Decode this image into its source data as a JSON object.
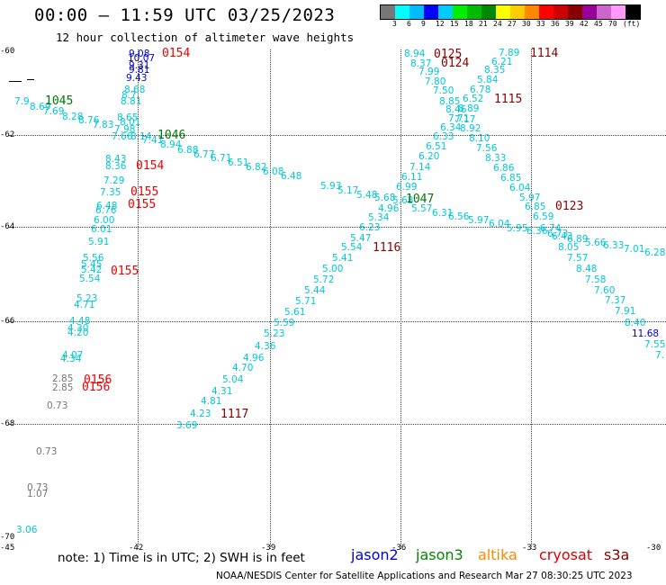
{
  "header": {
    "title": "00:00 – 11:59 UTC 03/25/2023",
    "subtitle": "12 hour collection of altimeter wave heights"
  },
  "colorbar": {
    "colors": [
      "#777777",
      "#00ffff",
      "#00bbff",
      "#0000ff",
      "#00ccff",
      "#00ee00",
      "#00bb00",
      "#008800",
      "#ffff00",
      "#ffcc00",
      "#ff8800",
      "#ff0000",
      "#cc0000",
      "#880000",
      "#990099",
      "#cc66cc",
      "#ff99ff",
      "#000000"
    ],
    "labels": [
      "3",
      "6",
      "9",
      "12",
      "15",
      "18",
      "21",
      "24",
      "27",
      "30",
      "33",
      "36",
      "39",
      "42",
      "45",
      "70",
      "(ft)"
    ]
  },
  "axes": {
    "lat_labels": [
      "-60",
      "-62",
      "-64",
      "-66",
      "-68",
      "-70"
    ],
    "lon_labels": [
      "-45",
      "-42",
      "-39",
      "-36",
      "-33",
      "-30"
    ]
  },
  "colors": {
    "cyan": "#00c8d8",
    "blue": "#0000dd",
    "darkred": "#880000",
    "red": "#ee0000",
    "green": "#007700",
    "gray": "#777777"
  },
  "wave_points": [
    {
      "v": "9.08",
      "c": "blue"
    },
    {
      "v": "10.07",
      "c": "blue"
    },
    {
      "v": "9.31",
      "c": "blue"
    },
    {
      "v": "9.81",
      "c": "blue"
    },
    {
      "v": "9.43",
      "c": "blue"
    },
    {
      "v": "8.68",
      "c": "cyan"
    },
    {
      "v": "8.7",
      "c": "cyan"
    },
    {
      "v": "8.81",
      "c": "cyan"
    },
    {
      "v": "8.65",
      "c": "cyan"
    },
    {
      "v": "8.01",
      "c": "cyan"
    },
    {
      "v": "7.98",
      "c": "cyan"
    },
    {
      "v": "7.66",
      "c": "cyan"
    },
    {
      "v": "7.9",
      "c": "cyan"
    },
    {
      "v": "8.69",
      "c": "cyan"
    },
    {
      "v": "7.69",
      "c": "cyan"
    },
    {
      "v": "8.28",
      "c": "cyan"
    },
    {
      "v": "8.76",
      "c": "cyan"
    },
    {
      "v": "7.83",
      "c": "cyan"
    },
    {
      "v": "8.14",
      "c": "cyan"
    },
    {
      "v": "7.41",
      "c": "cyan"
    },
    {
      "v": "8.94",
      "c": "cyan"
    },
    {
      "v": "6.88",
      "c": "cyan"
    },
    {
      "v": "6.77",
      "c": "cyan"
    },
    {
      "v": "6.71",
      "c": "cyan"
    },
    {
      "v": "6.51",
      "c": "cyan"
    },
    {
      "v": "6.82",
      "c": "cyan"
    },
    {
      "v": "6.08",
      "c": "cyan"
    },
    {
      "v": "6.48",
      "c": "cyan"
    },
    {
      "v": "5.93",
      "c": "cyan"
    },
    {
      "v": "5.17",
      "c": "cyan"
    },
    {
      "v": "5.48",
      "c": "cyan"
    },
    {
      "v": "5.68",
      "c": "cyan"
    },
    {
      "v": "5.68",
      "c": "cyan"
    },
    {
      "v": "5.57",
      "c": "cyan"
    },
    {
      "v": "6.31",
      "c": "cyan"
    },
    {
      "v": "6.56",
      "c": "cyan"
    },
    {
      "v": "5.97",
      "c": "cyan"
    },
    {
      "v": "6.04",
      "c": "cyan"
    },
    {
      "v": "5.95",
      "c": "cyan"
    },
    {
      "v": "6.36",
      "c": "cyan"
    },
    {
      "v": "6.73",
      "c": "cyan"
    },
    {
      "v": "6.89",
      "c": "cyan"
    },
    {
      "v": "5.66",
      "c": "cyan"
    },
    {
      "v": "6.33",
      "c": "cyan"
    },
    {
      "v": "7.01",
      "c": "cyan"
    },
    {
      "v": "6.28",
      "c": "cyan"
    },
    {
      "v": "8.43",
      "c": "cyan"
    },
    {
      "v": "8.36",
      "c": "cyan"
    },
    {
      "v": "7.29",
      "c": "cyan"
    },
    {
      "v": "7.35",
      "c": "cyan"
    },
    {
      "v": "6.48",
      "c": "cyan"
    },
    {
      "v": "6.76",
      "c": "cyan"
    },
    {
      "v": "6.00",
      "c": "cyan"
    },
    {
      "v": "6.01",
      "c": "cyan"
    },
    {
      "v": "5.91",
      "c": "cyan"
    },
    {
      "v": "5.56",
      "c": "cyan"
    },
    {
      "v": "5.45",
      "c": "cyan"
    },
    {
      "v": "5.42",
      "c": "cyan"
    },
    {
      "v": "5.54",
      "c": "cyan"
    },
    {
      "v": "5.23",
      "c": "cyan"
    },
    {
      "v": "4.71",
      "c": "cyan"
    },
    {
      "v": "4.48",
      "c": "cyan"
    },
    {
      "v": "4.30",
      "c": "cyan"
    },
    {
      "v": "4.20",
      "c": "cyan"
    },
    {
      "v": "4.07",
      "c": "cyan"
    },
    {
      "v": "4.34",
      "c": "cyan"
    },
    {
      "v": "2.85",
      "c": "gray"
    },
    {
      "v": "2.85",
      "c": "gray"
    },
    {
      "v": "0.73",
      "c": "gray"
    },
    {
      "v": "0.73",
      "c": "gray"
    },
    {
      "v": "0.73",
      "c": "gray"
    },
    {
      "v": "1.07",
      "c": "gray"
    },
    {
      "v": "3.06",
      "c": "cyan"
    },
    {
      "v": "8.94",
      "c": "cyan"
    },
    {
      "v": "8.37",
      "c": "cyan"
    },
    {
      "v": "7.99",
      "c": "cyan"
    },
    {
      "v": "7.80",
      "c": "cyan"
    },
    {
      "v": "7.50",
      "c": "cyan"
    },
    {
      "v": "8.85",
      "c": "cyan"
    },
    {
      "v": "8.46",
      "c": "cyan"
    },
    {
      "v": "7.71",
      "c": "cyan"
    },
    {
      "v": "6.34",
      "c": "cyan"
    },
    {
      "v": "6.33",
      "c": "cyan"
    },
    {
      "v": "6.51",
      "c": "cyan"
    },
    {
      "v": "6.20",
      "c": "cyan"
    },
    {
      "v": "7.14",
      "c": "cyan"
    },
    {
      "v": "6.11",
      "c": "cyan"
    },
    {
      "v": "6.99",
      "c": "cyan"
    },
    {
      "v": "4.96",
      "c": "cyan"
    },
    {
      "v": "5.34",
      "c": "cyan"
    },
    {
      "v": "6.23",
      "c": "cyan"
    },
    {
      "v": "5.47",
      "c": "cyan"
    },
    {
      "v": "5.54",
      "c": "cyan"
    },
    {
      "v": "5.41",
      "c": "cyan"
    },
    {
      "v": "5.00",
      "c": "cyan"
    },
    {
      "v": "5.72",
      "c": "cyan"
    },
    {
      "v": "5.44",
      "c": "cyan"
    },
    {
      "v": "5.71",
      "c": "cyan"
    },
    {
      "v": "5.61",
      "c": "cyan"
    },
    {
      "v": "5.59",
      "c": "cyan"
    },
    {
      "v": "5.23",
      "c": "cyan"
    },
    {
      "v": "4.36",
      "c": "cyan"
    },
    {
      "v": "4.96",
      "c": "cyan"
    },
    {
      "v": "4.70",
      "c": "cyan"
    },
    {
      "v": "5.04",
      "c": "cyan"
    },
    {
      "v": "4.31",
      "c": "cyan"
    },
    {
      "v": "4.81",
      "c": "cyan"
    },
    {
      "v": "4.23",
      "c": "cyan"
    },
    {
      "v": "3.69",
      "c": "cyan"
    },
    {
      "v": "7.89",
      "c": "cyan"
    },
    {
      "v": "6.21",
      "c": "cyan"
    },
    {
      "v": "8.35",
      "c": "cyan"
    },
    {
      "v": "5.84",
      "c": "cyan"
    },
    {
      "v": "6.78",
      "c": "cyan"
    },
    {
      "v": "6.52",
      "c": "cyan"
    },
    {
      "v": "8.89",
      "c": "cyan"
    },
    {
      "v": "7.17",
      "c": "cyan"
    },
    {
      "v": "8.92",
      "c": "cyan"
    },
    {
      "v": "8.10",
      "c": "cyan"
    },
    {
      "v": "7.56",
      "c": "cyan"
    },
    {
      "v": "8.33",
      "c": "cyan"
    },
    {
      "v": "6.86",
      "c": "cyan"
    },
    {
      "v": "6.85",
      "c": "cyan"
    },
    {
      "v": "6.04",
      "c": "cyan"
    },
    {
      "v": "5.97",
      "c": "cyan"
    },
    {
      "v": "6.85",
      "c": "cyan"
    },
    {
      "v": "6.59",
      "c": "cyan"
    },
    {
      "v": "6.74",
      "c": "cyan"
    },
    {
      "v": "6.43",
      "c": "cyan"
    },
    {
      "v": "8.05",
      "c": "cyan"
    },
    {
      "v": "7.57",
      "c": "cyan"
    },
    {
      "v": "8.48",
      "c": "cyan"
    },
    {
      "v": "7.58",
      "c": "cyan"
    },
    {
      "v": "7.60",
      "c": "cyan"
    },
    {
      "v": "7.37",
      "c": "cyan"
    },
    {
      "v": "7.91",
      "c": "cyan"
    },
    {
      "v": "8.40",
      "c": "cyan"
    },
    {
      "v": "11.68",
      "c": "blue"
    },
    {
      "v": "7.55",
      "c": "cyan"
    },
    {
      "v": "7.",
      "c": "cyan"
    }
  ],
  "time_labels": [
    {
      "v": "0154",
      "c": "red"
    },
    {
      "v": "1045",
      "c": "green"
    },
    {
      "v": "1046",
      "c": "green"
    },
    {
      "v": "0154",
      "c": "red"
    },
    {
      "v": "0155",
      "c": "red"
    },
    {
      "v": "0155",
      "c": "red"
    },
    {
      "v": "0155",
      "c": "red"
    },
    {
      "v": "0156",
      "c": "red"
    },
    {
      "v": "0156",
      "c": "red"
    },
    {
      "v": "0125",
      "c": "darkred"
    },
    {
      "v": "0124",
      "c": "darkred"
    },
    {
      "v": "1114",
      "c": "darkred"
    },
    {
      "v": "1115",
      "c": "darkred"
    },
    {
      "v": "1047",
      "c": "green"
    },
    {
      "v": "0123",
      "c": "darkred"
    },
    {
      "v": "1116",
      "c": "darkred"
    },
    {
      "v": "1117",
      "c": "darkred"
    }
  ],
  "footer": {
    "note": "note: 1) Time is in UTC; 2) SWH is in feet",
    "legend": [
      {
        "name": "jason2",
        "color": "#0000dd"
      },
      {
        "name": "jason3",
        "color": "#008800"
      },
      {
        "name": "altika",
        "color": "#ff8800"
      },
      {
        "name": "cryosat",
        "color": "#dd0000"
      },
      {
        "name": "s3a",
        "color": "#880000"
      }
    ],
    "credit": "NOAA/NESDIS Center for Satellite Applications and Research    Mar 27 08:30:25 UTC 2023"
  }
}
